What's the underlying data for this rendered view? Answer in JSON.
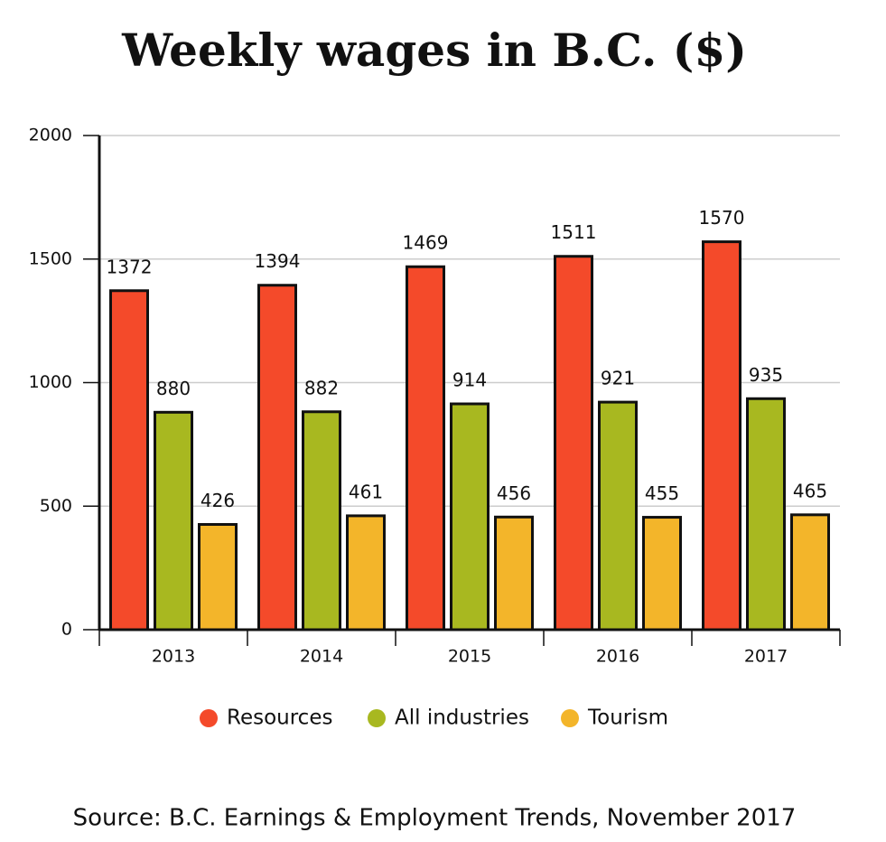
{
  "chart_data": {
    "type": "bar",
    "title": "Weekly wages in B.C. ($)",
    "source": "Source: B.C. Earnings & Employment Trends, November 2017",
    "categories": [
      "2013",
      "2014",
      "2015",
      "2016",
      "2017"
    ],
    "series": [
      {
        "name": "Resources",
        "color": "#f44a2a",
        "values": [
          1372,
          1394,
          1469,
          1511,
          1570
        ]
      },
      {
        "name": "All industries",
        "color": "#a8b820",
        "values": [
          880,
          882,
          914,
          921,
          935
        ]
      },
      {
        "name": "Tourism",
        "color": "#f3b52a",
        "values": [
          426,
          461,
          456,
          455,
          465
        ]
      }
    ],
    "ylim": [
      0,
      2000
    ],
    "yticks": [
      0,
      500,
      1000,
      1500,
      2000
    ],
    "grid": true,
    "legend": "bottom"
  }
}
